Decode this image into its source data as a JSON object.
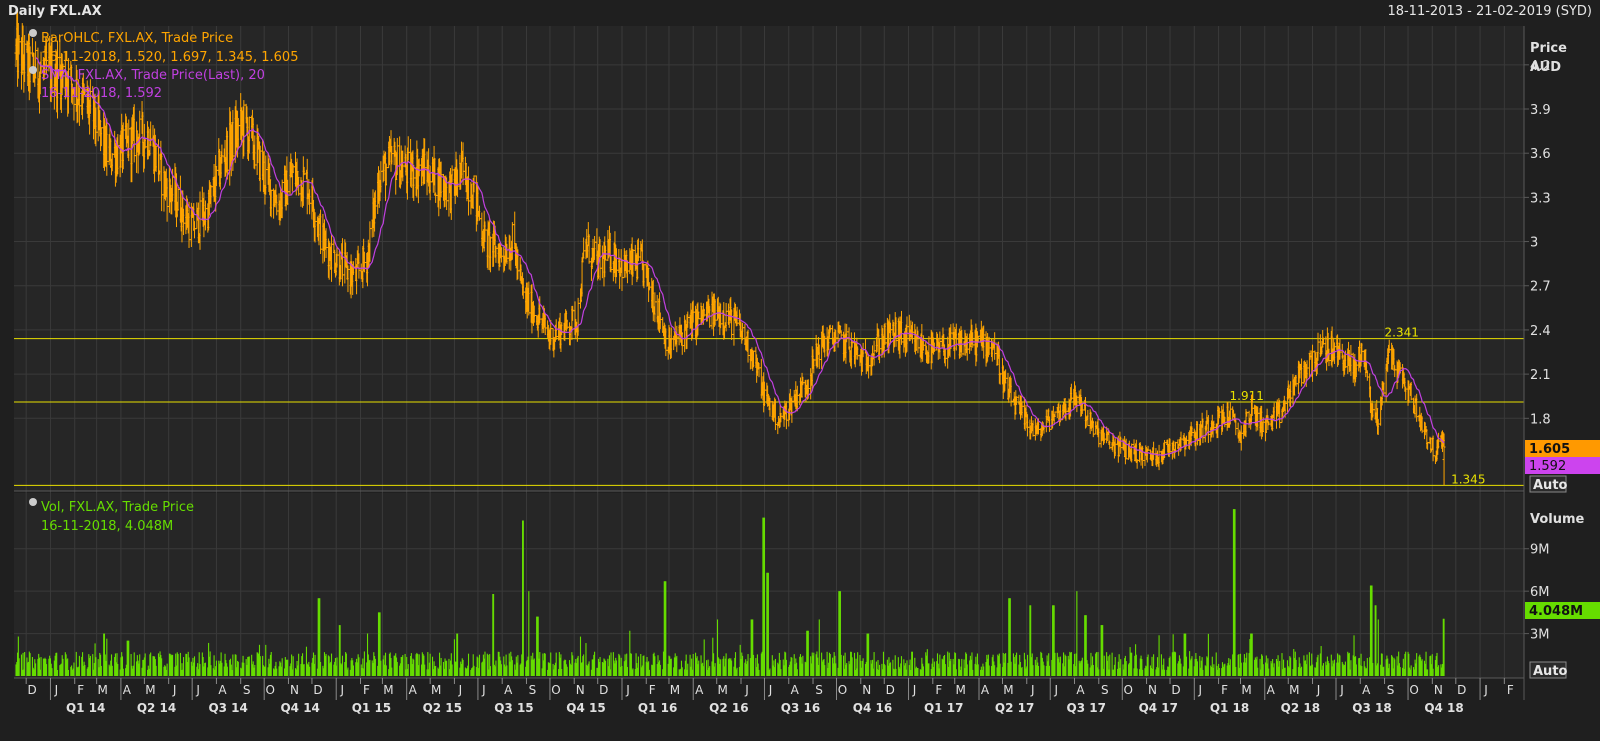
{
  "header": {
    "title": "Daily FXL.AX",
    "date_range": "18-11-2013 - 21-02-2019 (SYD)"
  },
  "colors": {
    "background": "#262626",
    "border": "#5a5a5a",
    "grid": "#3a3a3a",
    "price_bar": "#ffa500",
    "sma_line": "#c040e0",
    "volume_bar": "#66dd00",
    "level_line": "#e8e000",
    "axis_text": "#e0e0e0"
  },
  "price_panel": {
    "legend": {
      "ohlc_name": "BarOHLC, FXL.AX, Trade Price",
      "ohlc_values": "16-11-2018, 1.520, 1.697, 1.345, 1.605",
      "sma_name": "SMA, FXL.AX, Trade Price(Last),  20",
      "sma_values": "16-11-2018, 1.592"
    },
    "axis_title": "Price",
    "axis_unit": "AUD",
    "last_price_tag": "1.605",
    "last_sma_tag": "1.592",
    "auto_button": "Auto"
  },
  "volume_panel": {
    "legend_name": "Vol, FXL.AX, Trade Price",
    "legend_values": "16-11-2018, 4.048M",
    "axis_title": "Volume",
    "last_volume_tag": "4.048M",
    "auto_button": "Auto"
  },
  "chart_data": [
    {
      "type": "line",
      "subtype": "ohlc",
      "series": [
        {
          "name": "BarOHLC, FXL.AX, Trade Price",
          "color": "#ffa500",
          "anchors": [
            [
              "2013-11-18",
              4.28
            ],
            [
              "2013-12-10",
              4.15
            ],
            [
              "2014-01-05",
              4.15
            ],
            [
              "2014-01-22",
              4.12
            ],
            [
              "2014-02-10",
              3.98
            ],
            [
              "2014-02-25",
              3.85
            ],
            [
              "2014-03-15",
              3.58
            ],
            [
              "2014-04-01",
              3.62
            ],
            [
              "2014-04-20",
              3.7
            ],
            [
              "2014-05-08",
              3.72
            ],
            [
              "2014-05-25",
              3.4
            ],
            [
              "2014-06-15",
              3.25
            ],
            [
              "2014-06-30",
              3.1
            ],
            [
              "2014-07-20",
              3.2
            ],
            [
              "2014-08-10",
              3.58
            ],
            [
              "2014-08-25",
              3.72
            ],
            [
              "2014-09-05",
              3.8
            ],
            [
              "2014-09-20",
              3.62
            ],
            [
              "2014-10-05",
              3.4
            ],
            [
              "2014-10-20",
              3.25
            ],
            [
              "2014-11-05",
              3.45
            ],
            [
              "2014-11-25",
              3.4
            ],
            [
              "2014-12-15",
              3.0
            ],
            [
              "2015-01-05",
              2.85
            ],
            [
              "2015-01-25",
              2.75
            ],
            [
              "2015-02-10",
              2.9
            ],
            [
              "2015-02-25",
              3.45
            ],
            [
              "2015-03-15",
              3.55
            ],
            [
              "2015-04-01",
              3.48
            ],
            [
              "2015-04-20",
              3.5
            ],
            [
              "2015-05-10",
              3.42
            ],
            [
              "2015-05-28",
              3.35
            ],
            [
              "2015-06-10",
              3.48
            ],
            [
              "2015-06-25",
              3.35
            ],
            [
              "2015-07-10",
              3.0
            ],
            [
              "2015-07-30",
              2.92
            ],
            [
              "2015-08-15",
              3.0
            ],
            [
              "2015-08-28",
              2.62
            ],
            [
              "2015-09-15",
              2.5
            ],
            [
              "2015-10-01",
              2.35
            ],
            [
              "2015-10-20",
              2.42
            ],
            [
              "2015-11-05",
              2.48
            ],
            [
              "2015-11-15",
              2.98
            ],
            [
              "2015-12-01",
              2.85
            ],
            [
              "2015-12-20",
              2.92
            ],
            [
              "2016-01-05",
              2.82
            ],
            [
              "2016-01-25",
              2.85
            ],
            [
              "2016-02-15",
              2.55
            ],
            [
              "2016-03-01",
              2.28
            ],
            [
              "2016-03-25",
              2.42
            ],
            [
              "2016-04-15",
              2.5
            ],
            [
              "2016-05-05",
              2.52
            ],
            [
              "2016-05-25",
              2.45
            ],
            [
              "2016-06-15",
              2.25
            ],
            [
              "2016-07-01",
              1.95
            ],
            [
              "2016-07-20",
              1.78
            ],
            [
              "2016-08-10",
              1.95
            ],
            [
              "2016-08-25",
              2.05
            ],
            [
              "2016-09-10",
              2.3
            ],
            [
              "2016-09-30",
              2.35
            ],
            [
              "2016-10-15",
              2.3
            ],
            [
              "2016-11-05",
              2.18
            ],
            [
              "2016-11-25",
              2.32
            ],
            [
              "2016-12-15",
              2.38
            ],
            [
              "2017-01-05",
              2.32
            ],
            [
              "2017-02-01",
              2.25
            ],
            [
              "2017-03-01",
              2.3
            ],
            [
              "2017-04-01",
              2.32
            ],
            [
              "2017-04-20",
              2.3
            ],
            [
              "2017-05-05",
              2.0
            ],
            [
              "2017-05-25",
              1.82
            ],
            [
              "2017-06-15",
              1.7
            ],
            [
              "2017-07-01",
              1.8
            ],
            [
              "2017-07-20",
              1.88
            ],
            [
              "2017-08-05",
              1.95
            ],
            [
              "2017-08-25",
              1.72
            ],
            [
              "2017-09-20",
              1.62
            ],
            [
              "2017-10-15",
              1.57
            ],
            [
              "2017-11-10",
              1.54
            ],
            [
              "2017-12-05",
              1.62
            ],
            [
              "2018-01-05",
              1.7
            ],
            [
              "2018-01-25",
              1.78
            ],
            [
              "2018-02-15",
              1.82
            ],
            [
              "2018-02-28",
              1.68
            ],
            [
              "2018-03-15",
              1.85
            ],
            [
              "2018-04-01",
              1.75
            ],
            [
              "2018-04-20",
              1.82
            ],
            [
              "2018-05-10",
              2.05
            ],
            [
              "2018-06-01",
              2.2
            ],
            [
              "2018-06-20",
              2.28
            ],
            [
              "2018-07-10",
              2.22
            ],
            [
              "2018-07-25",
              2.12
            ],
            [
              "2018-08-05",
              2.3
            ],
            [
              "2018-08-15",
              1.85
            ],
            [
              "2018-08-25",
              1.8
            ],
            [
              "2018-09-05",
              2.25
            ],
            [
              "2018-09-20",
              2.1
            ],
            [
              "2018-10-05",
              1.95
            ],
            [
              "2018-10-20",
              1.75
            ],
            [
              "2018-11-05",
              1.55
            ],
            [
              "2018-11-12",
              1.65
            ],
            [
              "2018-11-16",
              1.6
            ]
          ]
        },
        {
          "name": "SMA, FXL.AX, Trade Price(Last),  20",
          "color": "#c040e0",
          "last": 1.592
        }
      ],
      "last_bar": {
        "date": "2018-11-16",
        "open": 1.52,
        "high": 1.697,
        "low": 1.345,
        "close": 1.605
      },
      "horizontal_levels": [
        {
          "value": 2.341,
          "label": "2.341",
          "label_date": "2018-09-01"
        },
        {
          "value": 1.911,
          "label": "1.911",
          "label_date": "2018-02-15"
        },
        {
          "value": 1.345,
          "label": "1.345",
          "label_date": "2018-11-25"
        }
      ],
      "x_range": [
        "2013-11-18",
        "2019-02-21"
      ],
      "ylim": [
        1.32,
        4.45
      ],
      "y_ticks": [
        1.8,
        2.1,
        2.4,
        2.7,
        3,
        3.3,
        3.6,
        3.9,
        4.2
      ],
      "y_tick_labels": [
        "1.8",
        "2.1",
        "2.4",
        "2.7",
        "3",
        "3.3",
        "3.6",
        "3.9",
        "4.2"
      ],
      "ylabel": "Price",
      "yunit": "AUD",
      "grid": true,
      "legend": "top-left"
    },
    {
      "type": "bar",
      "series": [
        {
          "name": "Vol, FXL.AX, Trade Price",
          "color": "#66dd00",
          "last": 4.048
        }
      ],
      "baseline_millions": 1.2,
      "spikes": [
        [
          "2014-03-10",
          3.0
        ],
        [
          "2014-04-10",
          2.5
        ],
        [
          "2014-12-10",
          5.5
        ],
        [
          "2015-01-05",
          3.6
        ],
        [
          "2015-02-25",
          4.5
        ],
        [
          "2015-06-05",
          3.0
        ],
        [
          "2015-07-20",
          5.8
        ],
        [
          "2015-08-28",
          11.0
        ],
        [
          "2015-09-05",
          6.0
        ],
        [
          "2015-09-15",
          4.2
        ],
        [
          "2016-01-10",
          3.2
        ],
        [
          "2016-02-25",
          6.7
        ],
        [
          "2016-05-01",
          4.0
        ],
        [
          "2016-06-15",
          4.0
        ],
        [
          "2016-06-30",
          11.2
        ],
        [
          "2016-07-05",
          7.3
        ],
        [
          "2016-08-25",
          3.2
        ],
        [
          "2016-09-10",
          4.0
        ],
        [
          "2016-10-05",
          6.0
        ],
        [
          "2016-11-10",
          3.0
        ],
        [
          "2017-05-10",
          5.5
        ],
        [
          "2017-06-05",
          5.0
        ],
        [
          "2017-07-05",
          5.0
        ],
        [
          "2017-08-05",
          6.0
        ],
        [
          "2017-08-15",
          4.3
        ],
        [
          "2017-09-05",
          3.6
        ],
        [
          "2017-12-20",
          3.0
        ],
        [
          "2018-02-21",
          11.8
        ],
        [
          "2018-03-15",
          3.0
        ],
        [
          "2018-08-15",
          6.4
        ],
        [
          "2018-08-20",
          5.0
        ],
        [
          "2018-08-25",
          4.0
        ],
        [
          "2018-11-16",
          4.048
        ]
      ],
      "x_range": [
        "2013-11-18",
        "2019-02-21"
      ],
      "ylim": [
        0,
        12.8
      ],
      "y_ticks": [
        3,
        6,
        9
      ],
      "y_tick_labels": [
        "3M",
        "6M",
        "9M"
      ],
      "ylabel": "Volume",
      "grid": true
    }
  ],
  "time_axis": {
    "months": [
      {
        "label": "D",
        "date": "2013-12-01"
      },
      {
        "label": "J",
        "date": "2014-01-01"
      },
      {
        "label": "F",
        "date": "2014-02-01"
      },
      {
        "label": "M",
        "date": "2014-03-01"
      },
      {
        "label": "A",
        "date": "2014-04-01"
      },
      {
        "label": "M",
        "date": "2014-05-01"
      },
      {
        "label": "J",
        "date": "2014-06-01"
      },
      {
        "label": "J",
        "date": "2014-07-01"
      },
      {
        "label": "A",
        "date": "2014-08-01"
      },
      {
        "label": "S",
        "date": "2014-09-01"
      },
      {
        "label": "O",
        "date": "2014-10-01"
      },
      {
        "label": "N",
        "date": "2014-11-01"
      },
      {
        "label": "D",
        "date": "2014-12-01"
      },
      {
        "label": "J",
        "date": "2015-01-01"
      },
      {
        "label": "F",
        "date": "2015-02-01"
      },
      {
        "label": "M",
        "date": "2015-03-01"
      },
      {
        "label": "A",
        "date": "2015-04-01"
      },
      {
        "label": "M",
        "date": "2015-05-01"
      },
      {
        "label": "J",
        "date": "2015-06-01"
      },
      {
        "label": "J",
        "date": "2015-07-01"
      },
      {
        "label": "A",
        "date": "2015-08-01"
      },
      {
        "label": "S",
        "date": "2015-09-01"
      },
      {
        "label": "O",
        "date": "2015-10-01"
      },
      {
        "label": "N",
        "date": "2015-11-01"
      },
      {
        "label": "D",
        "date": "2015-12-01"
      },
      {
        "label": "J",
        "date": "2016-01-01"
      },
      {
        "label": "F",
        "date": "2016-02-01"
      },
      {
        "label": "M",
        "date": "2016-03-01"
      },
      {
        "label": "A",
        "date": "2016-04-01"
      },
      {
        "label": "M",
        "date": "2016-05-01"
      },
      {
        "label": "J",
        "date": "2016-06-01"
      },
      {
        "label": "J",
        "date": "2016-07-01"
      },
      {
        "label": "A",
        "date": "2016-08-01"
      },
      {
        "label": "S",
        "date": "2016-09-01"
      },
      {
        "label": "O",
        "date": "2016-10-01"
      },
      {
        "label": "N",
        "date": "2016-11-01"
      },
      {
        "label": "D",
        "date": "2016-12-01"
      },
      {
        "label": "J",
        "date": "2017-01-01"
      },
      {
        "label": "F",
        "date": "2017-02-01"
      },
      {
        "label": "M",
        "date": "2017-03-01"
      },
      {
        "label": "A",
        "date": "2017-04-01"
      },
      {
        "label": "M",
        "date": "2017-05-01"
      },
      {
        "label": "J",
        "date": "2017-06-01"
      },
      {
        "label": "J",
        "date": "2017-07-01"
      },
      {
        "label": "A",
        "date": "2017-08-01"
      },
      {
        "label": "S",
        "date": "2017-09-01"
      },
      {
        "label": "O",
        "date": "2017-10-01"
      },
      {
        "label": "N",
        "date": "2017-11-01"
      },
      {
        "label": "D",
        "date": "2017-12-01"
      },
      {
        "label": "J",
        "date": "2018-01-01"
      },
      {
        "label": "F",
        "date": "2018-02-01"
      },
      {
        "label": "M",
        "date": "2018-03-01"
      },
      {
        "label": "A",
        "date": "2018-04-01"
      },
      {
        "label": "M",
        "date": "2018-05-01"
      },
      {
        "label": "J",
        "date": "2018-06-01"
      },
      {
        "label": "J",
        "date": "2018-07-01"
      },
      {
        "label": "A",
        "date": "2018-08-01"
      },
      {
        "label": "S",
        "date": "2018-09-01"
      },
      {
        "label": "O",
        "date": "2018-10-01"
      },
      {
        "label": "N",
        "date": "2018-11-01"
      },
      {
        "label": "D",
        "date": "2018-12-01"
      },
      {
        "label": "J",
        "date": "2019-01-01"
      },
      {
        "label": "F",
        "date": "2019-02-01"
      }
    ],
    "quarters": [
      {
        "label": "Q1 14",
        "date": "2014-01-01"
      },
      {
        "label": "Q2 14",
        "date": "2014-04-01"
      },
      {
        "label": "Q3 14",
        "date": "2014-07-01"
      },
      {
        "label": "Q4 14",
        "date": "2014-10-01"
      },
      {
        "label": "Q1 15",
        "date": "2015-01-01"
      },
      {
        "label": "Q2 15",
        "date": "2015-04-01"
      },
      {
        "label": "Q3 15",
        "date": "2015-07-01"
      },
      {
        "label": "Q4 15",
        "date": "2015-10-01"
      },
      {
        "label": "Q1 16",
        "date": "2016-01-01"
      },
      {
        "label": "Q2 16",
        "date": "2016-04-01"
      },
      {
        "label": "Q3 16",
        "date": "2016-07-01"
      },
      {
        "label": "Q4 16",
        "date": "2016-10-01"
      },
      {
        "label": "Q1 17",
        "date": "2017-01-01"
      },
      {
        "label": "Q2 17",
        "date": "2017-04-01"
      },
      {
        "label": "Q3 17",
        "date": "2017-07-01"
      },
      {
        "label": "Q4 17",
        "date": "2017-10-01"
      },
      {
        "label": "Q1 18",
        "date": "2018-01-01"
      },
      {
        "label": "Q2 18",
        "date": "2018-04-01"
      },
      {
        "label": "Q3 18",
        "date": "2018-07-01"
      },
      {
        "label": "Q4 18",
        "date": "2018-10-01"
      },
      {
        "label": "",
        "date": "2019-01-01"
      }
    ]
  }
}
